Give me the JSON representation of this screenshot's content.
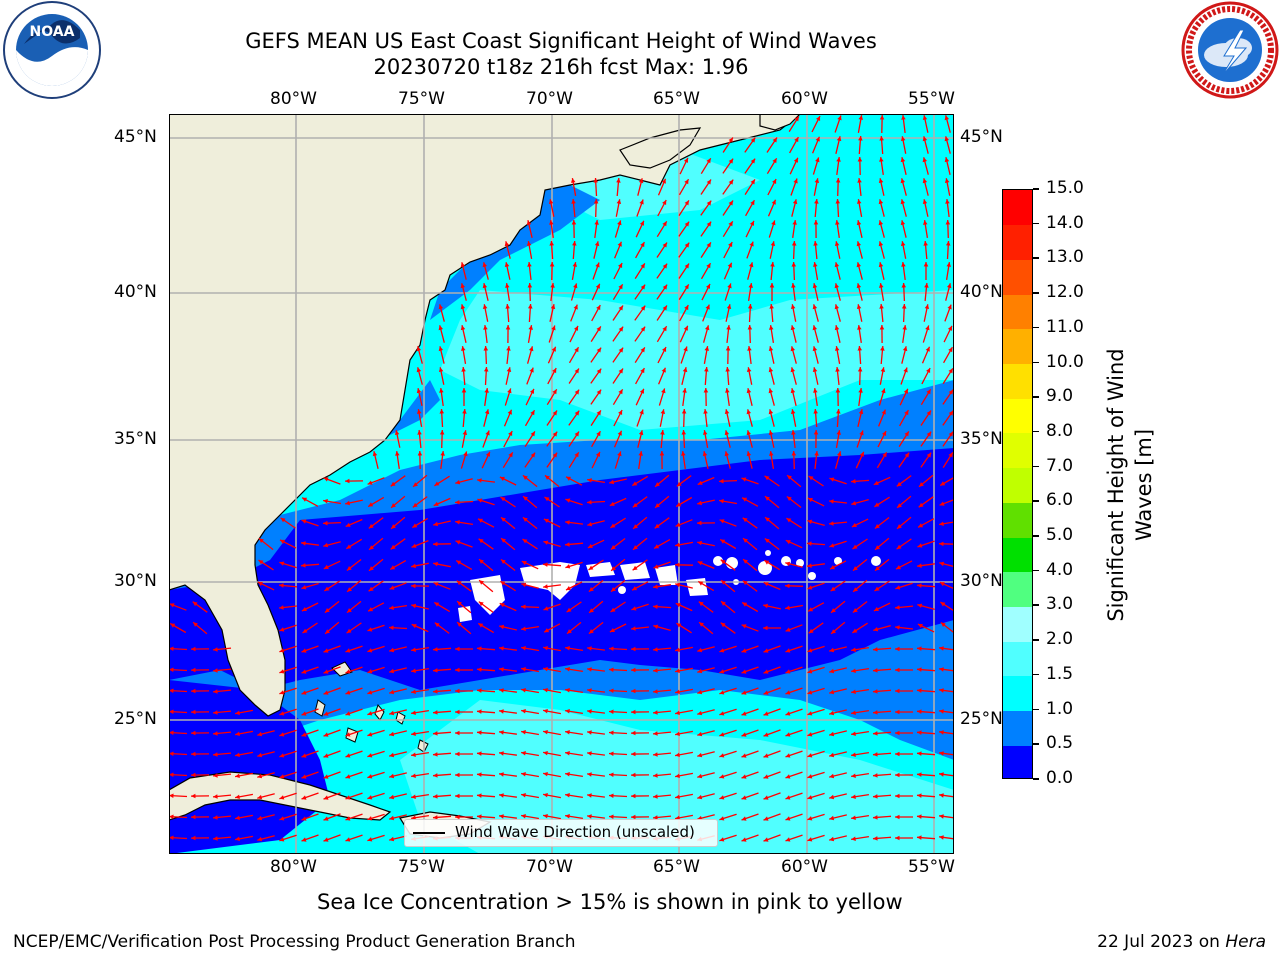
{
  "title": {
    "line1": "GEFS MEAN US East Coast Significant Height of Wind Waves",
    "line2": "20230720 t18z 216h fcst   Max: 1.96"
  },
  "map": {
    "lon_ticks_top": [
      "80°W",
      "75°W",
      "70°W",
      "65°W",
      "60°W",
      "55°W"
    ],
    "lon_ticks_bottom": [
      "80°W",
      "75°W",
      "70°W",
      "65°W",
      "60°W",
      "55°W"
    ],
    "lat_ticks_left": [
      "45°N",
      "40°N",
      "35°N",
      "30°N",
      "25°N"
    ],
    "lat_ticks_right": [
      "45°N",
      "40°N",
      "35°N",
      "30°N",
      "25°N"
    ],
    "legend_label": "Wind Wave Direction (unscaled)",
    "colors": {
      "land": "#efeedb",
      "arrow": "#ff0000",
      "grid": "#b0b0b0"
    }
  },
  "colorbar": {
    "label": "Significant Height of Wind Waves [m]",
    "label_line1": "Significant Height of Wind",
    "label_line2": "Waves [m]",
    "ticks": [
      "0.0",
      "0.5",
      "1.0",
      "1.5",
      "2.0",
      "3.0",
      "4.0",
      "5.0",
      "6.0",
      "7.0",
      "8.0",
      "9.0",
      "10.0",
      "11.0",
      "12.0",
      "13.0",
      "14.0",
      "15.0"
    ],
    "colors": [
      "#0000ff",
      "#0080ff",
      "#00ffff",
      "#50ffff",
      "#a0ffff",
      "#50ff80",
      "#00e000",
      "#60e000",
      "#c0ff00",
      "#e0ff00",
      "#ffff00",
      "#ffe000",
      "#ffb000",
      "#ff8000",
      "#ff5000",
      "#ff2000",
      "#ff0000"
    ]
  },
  "logos": {
    "left": {
      "text": "NOAA",
      "icon": "noaa-logo"
    },
    "right": {
      "icon": "nws-logo"
    }
  },
  "note": "Sea Ice Concentration > 15% is shown in pink to yellow",
  "footer": {
    "left": "NCEP/EMC/Verification Post Processing Product Generation Branch",
    "date": "22 Jul 2023 on ",
    "system": "Hera"
  }
}
